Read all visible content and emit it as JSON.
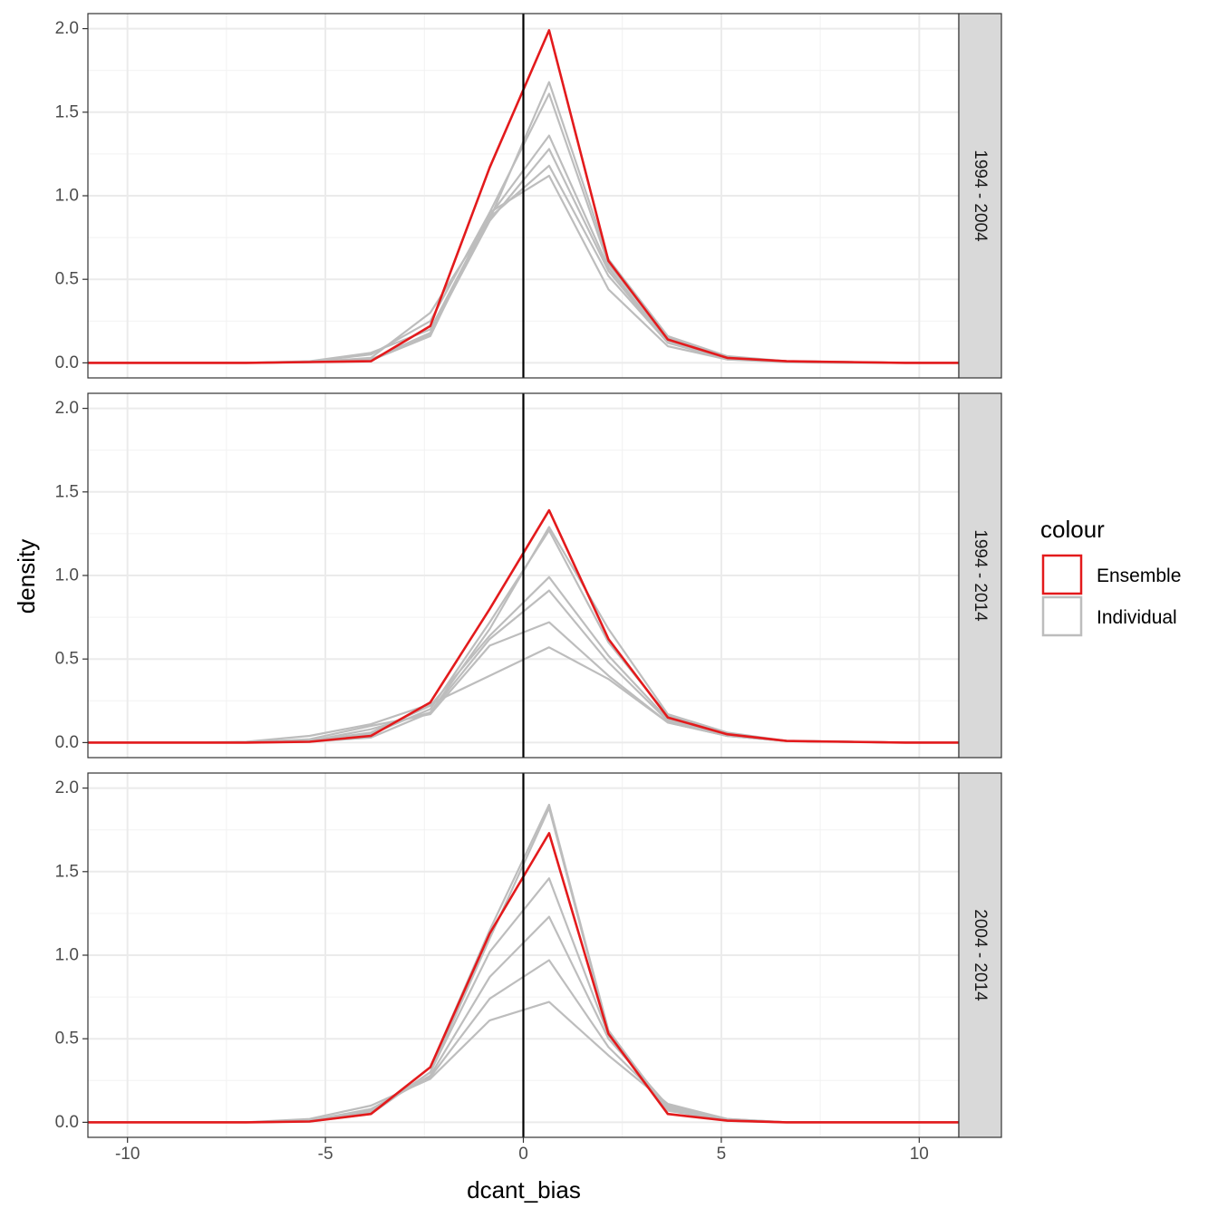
{
  "chart_data": {
    "type": "line",
    "xlabel": "dcant_bias",
    "ylabel": "density",
    "xlim": [
      -11,
      11
    ],
    "ylim": [
      -0.09,
      2.09
    ],
    "x_ticks": [
      -10,
      -5,
      0,
      5,
      10
    ],
    "x_tick_labels": [
      "-10",
      "-5",
      "0",
      "5",
      "10"
    ],
    "y_ticks": [
      0,
      0.5,
      1,
      1.5,
      2
    ],
    "y_tick_labels": [
      "0.0",
      "0.5",
      "1.0",
      "1.5",
      "2.0"
    ],
    "vline_x": 0,
    "grid": true,
    "legend": {
      "title": "colour",
      "position": "right",
      "entries": [
        {
          "label": "Ensemble",
          "color": "#e31a1c"
        },
        {
          "label": "Individual",
          "color": "#bdbdbd"
        }
      ]
    },
    "x": [
      -11,
      -10,
      -8.5,
      -7,
      -5.4,
      -3.85,
      -2.35,
      -0.85,
      0.65,
      2.15,
      3.65,
      5.15,
      6.65,
      8.15,
      9.65,
      11
    ],
    "panels": [
      {
        "strip": "1994 - 2004",
        "ensemble": [
          0,
          0,
          0,
          0,
          0.005,
          0.01,
          0.22,
          1.17,
          1.99,
          0.61,
          0.14,
          0.03,
          0.01,
          0.005,
          0,
          0
        ],
        "individual": [
          [
            0,
            0,
            0,
            0,
            0.005,
            0.03,
            0.3,
            0.86,
            1.68,
            0.62,
            0.16,
            0.04,
            0.01,
            0.005,
            0,
            0
          ],
          [
            0,
            0,
            0,
            0,
            0.008,
            0.05,
            0.25,
            0.9,
            1.61,
            0.59,
            0.15,
            0.03,
            0.01,
            0.005,
            0,
            0
          ],
          [
            0,
            0,
            0,
            0,
            0.01,
            0.06,
            0.2,
            0.88,
            1.36,
            0.57,
            0.13,
            0.03,
            0.01,
            0.005,
            0,
            0
          ],
          [
            0,
            0,
            0,
            0,
            0.005,
            0.02,
            0.18,
            0.85,
            1.28,
            0.55,
            0.12,
            0.03,
            0.01,
            0.005,
            0,
            0
          ],
          [
            0,
            0,
            0,
            0,
            0.005,
            0.02,
            0.17,
            0.87,
            1.18,
            0.52,
            0.12,
            0.02,
            0.01,
            0.005,
            0,
            0
          ],
          [
            0,
            0,
            0,
            0,
            0.005,
            0.015,
            0.16,
            0.9,
            1.12,
            0.44,
            0.1,
            0.02,
            0.005,
            0,
            0,
            0
          ]
        ]
      },
      {
        "strip": "1994 - 2014",
        "ensemble": [
          0,
          0,
          0,
          0,
          0.005,
          0.04,
          0.24,
          0.8,
          1.39,
          0.62,
          0.15,
          0.05,
          0.01,
          0.005,
          0,
          0
        ],
        "individual": [
          [
            0,
            0,
            0,
            0,
            0.005,
            0.03,
            0.18,
            0.68,
            1.29,
            0.68,
            0.17,
            0.06,
            0.01,
            0.005,
            0,
            0
          ],
          [
            0,
            0,
            0,
            0,
            0.005,
            0.05,
            0.2,
            0.72,
            1.27,
            0.6,
            0.16,
            0.05,
            0.01,
            0.005,
            0,
            0
          ],
          [
            0,
            0,
            0,
            0,
            0.01,
            0.06,
            0.22,
            0.64,
            0.99,
            0.52,
            0.14,
            0.05,
            0.01,
            0.005,
            0,
            0
          ],
          [
            0,
            0,
            0,
            0,
            0.01,
            0.08,
            0.18,
            0.62,
            0.91,
            0.48,
            0.13,
            0.04,
            0.01,
            0.005,
            0,
            0
          ],
          [
            0,
            0,
            0,
            0,
            0.02,
            0.1,
            0.17,
            0.58,
            0.72,
            0.4,
            0.12,
            0.04,
            0.01,
            0.005,
            0,
            0
          ],
          [
            0,
            0,
            0,
            0.005,
            0.04,
            0.11,
            0.23,
            0.4,
            0.57,
            0.38,
            0.12,
            0.04,
            0.01,
            0.005,
            0,
            0
          ]
        ]
      },
      {
        "strip": "2004 - 2014",
        "ensemble": [
          0,
          0,
          0,
          0,
          0.005,
          0.05,
          0.33,
          1.13,
          1.73,
          0.53,
          0.05,
          0.01,
          0,
          0,
          0,
          0
        ],
        "individual": [
          [
            0,
            0,
            0,
            0,
            0.005,
            0.05,
            0.33,
            1.15,
            1.9,
            0.55,
            0.07,
            0.01,
            0,
            0,
            0,
            0
          ],
          [
            0,
            0,
            0,
            0,
            0.005,
            0.05,
            0.3,
            1.1,
            1.88,
            0.54,
            0.08,
            0.01,
            0,
            0,
            0,
            0
          ],
          [
            0,
            0,
            0,
            0,
            0.008,
            0.06,
            0.3,
            1.02,
            1.46,
            0.52,
            0.09,
            0.01,
            0,
            0,
            0,
            0
          ],
          [
            0,
            0,
            0,
            0,
            0.01,
            0.07,
            0.28,
            0.87,
            1.23,
            0.5,
            0.1,
            0.015,
            0,
            0,
            0,
            0
          ],
          [
            0,
            0,
            0,
            0,
            0.01,
            0.08,
            0.27,
            0.74,
            0.97,
            0.45,
            0.1,
            0.02,
            0,
            0,
            0,
            0
          ],
          [
            0,
            0,
            0,
            0,
            0.02,
            0.1,
            0.26,
            0.61,
            0.72,
            0.4,
            0.11,
            0.02,
            0,
            0,
            0,
            0
          ]
        ]
      }
    ]
  }
}
